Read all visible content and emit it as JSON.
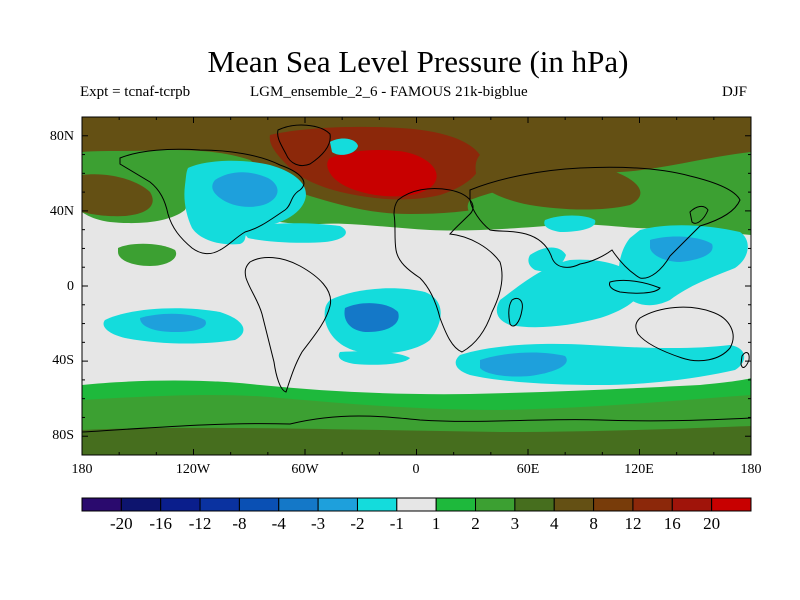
{
  "title": "Mean Sea Level Pressure (in hPa)",
  "experiment_label": "Expt = tcnaf-tcrpb",
  "run_label": "LGM_ensemble_2_6 - FAMOUS 21k-bigblue",
  "season": "DJF",
  "axes": {
    "lat_ticks": [
      "80N",
      "40N",
      "0",
      "40S",
      "80S"
    ],
    "lon_ticks": [
      "180",
      "120W",
      "60W",
      "0",
      "60E",
      "120E",
      "180"
    ]
  },
  "colorbar": {
    "labels": [
      "-20",
      "-16",
      "-12",
      "-8",
      "-4",
      "-3",
      "-2",
      "-1",
      "1",
      "2",
      "3",
      "4",
      "8",
      "12",
      "16",
      "20"
    ],
    "colors": [
      "#2a0a6e",
      "#0d146e",
      "#0a1e8c",
      "#0a32a0",
      "#0a50b4",
      "#1478c8",
      "#1ea0dc",
      "#14dcdc",
      "#e6e6e6",
      "#1eb93c",
      "#3ca032",
      "#466e1e",
      "#645014",
      "#783c0a",
      "#8c280a",
      "#a0140a",
      "#c80000"
    ]
  },
  "colors": {
    "neutral": "#e6e6e6",
    "neg_light": "#14dcdc",
    "neg_mid": "#1ea0dc",
    "neg_strong": "#1478c8",
    "pos_light": "#1eb93c",
    "pos_mid": "#3ca032",
    "pos_dark": "#466e1e",
    "pos_brown": "#645014",
    "pos_rust": "#8c280a",
    "pos_red": "#c80000",
    "coast": "#000000"
  }
}
